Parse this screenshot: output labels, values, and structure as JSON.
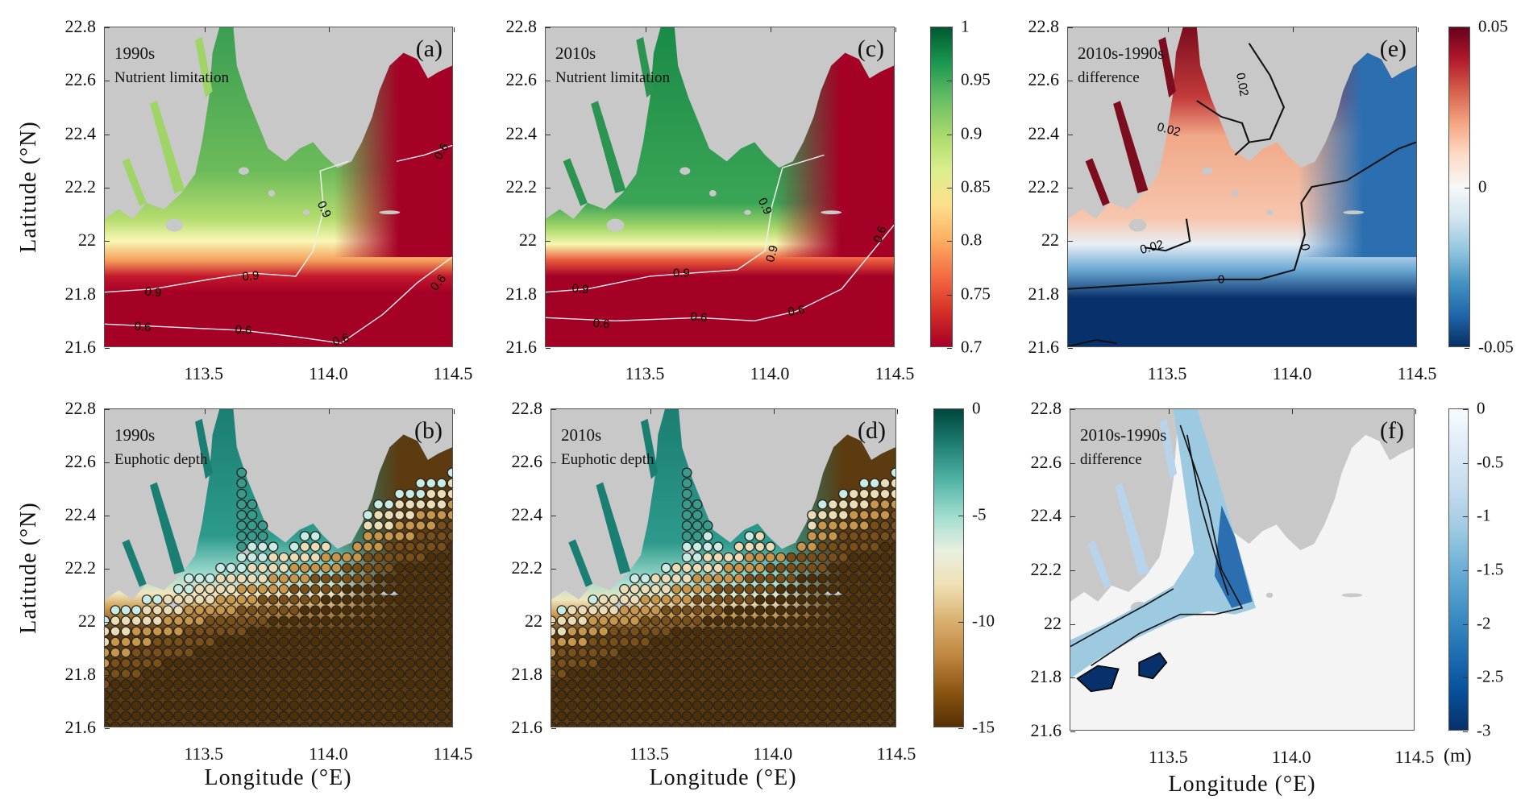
{
  "axes": {
    "ylabel": "Latitude (°N)",
    "xlabel": "Longitude (°E)",
    "yticks": [
      "22.8",
      "22.6",
      "22.4",
      "22.2",
      "22",
      "21.8",
      "21.6"
    ],
    "ytick_values": [
      22.8,
      22.6,
      22.4,
      22.2,
      22.0,
      21.8,
      21.6
    ],
    "xticks": [
      "113.5",
      "114.0",
      "114.5"
    ],
    "xtick_values": [
      113.5,
      114.0,
      114.5
    ],
    "xlim": [
      113.1,
      114.5
    ],
    "ylim": [
      21.6,
      22.8
    ]
  },
  "panels": {
    "a": {
      "letter": "(a)",
      "line1": "1990s",
      "line2": "Nutrient limitation",
      "contours": [
        "0.9",
        "0.9",
        "0.9",
        "0.6",
        "0.6",
        "0.6",
        "0.6",
        "0.6"
      ]
    },
    "c": {
      "letter": "(c)",
      "line1": "2010s",
      "line2": "Nutrient limitation",
      "contours": [
        "0.9",
        "0.9",
        "0.9",
        "0.9",
        "0.6",
        "0.6",
        "0.6",
        "0.6"
      ]
    },
    "e": {
      "letter": "(e)",
      "line1": "2010s-1990s",
      "line2": "difference",
      "contours": [
        "0.02",
        "0.02",
        "0.02",
        "0",
        "0"
      ]
    },
    "b": {
      "letter": "(b)",
      "line1": "1990s",
      "line2": "Euphotic depth"
    },
    "d": {
      "letter": "(d)",
      "line1": "2010s",
      "line2": "Euphotic depth"
    },
    "f": {
      "letter": "(f)",
      "line1": "2010s-1990s",
      "line2": "difference"
    }
  },
  "colorbars": {
    "nutrient": {
      "ticks": [
        "1",
        "0.95",
        "0.9",
        "0.85",
        "0.8",
        "0.75",
        "0.7"
      ],
      "range": [
        0.7,
        1
      ],
      "colors": [
        "#00582e",
        "#1a9850",
        "#66bd63",
        "#a6d96a",
        "#d9ef8b",
        "#fee08b",
        "#fdae61",
        "#f46d43",
        "#d73027",
        "#a50026"
      ]
    },
    "nutrient_diff": {
      "ticks": [
        "0.05",
        "0",
        "-0.05"
      ],
      "range": [
        -0.05,
        0.05
      ],
      "colors": [
        "#67001f",
        "#b2182b",
        "#d6604d",
        "#f4a582",
        "#fddbc7",
        "#f7f7f7",
        "#d1e5f0",
        "#92c5de",
        "#4393c3",
        "#2166ac",
        "#053061"
      ]
    },
    "euphotic": {
      "ticks": [
        "0",
        "-5",
        "-10",
        "-15"
      ],
      "range": [
        -15,
        0
      ],
      "colors": [
        "#00463c",
        "#1f7e72",
        "#4fb3a4",
        "#9fdccf",
        "#e8f0e0",
        "#f0e0b4",
        "#d9b070",
        "#bf8640",
        "#8c5512",
        "#543005"
      ]
    },
    "euphotic_diff": {
      "ticks": [
        "0",
        "-0.5",
        "-1",
        "-1.5",
        "-2",
        "-2.5",
        "-3"
      ],
      "unit": "(m)",
      "range": [
        -3,
        0
      ],
      "colors": [
        "#f7fbff",
        "#deebf7",
        "#c6dbef",
        "#9ecae1",
        "#6baed6",
        "#4292c6",
        "#2171b5",
        "#08519c",
        "#08306b"
      ]
    }
  }
}
